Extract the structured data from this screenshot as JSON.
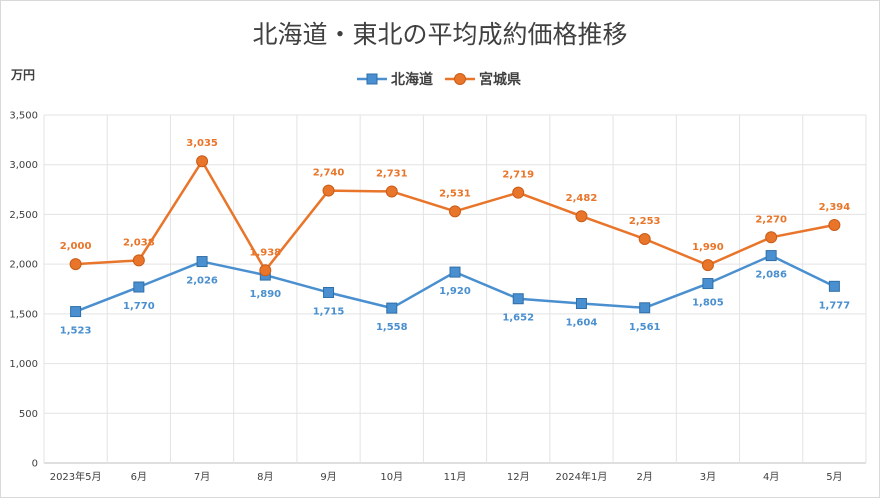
{
  "chart_data": {
    "type": "line",
    "title": "北海道・東北の平均成約価格推移",
    "unit_label": "万円",
    "ylim": [
      0,
      3500
    ],
    "ytick_step": 500,
    "ytick_labels": [
      "0",
      "500",
      "1,000",
      "1,500",
      "2,000",
      "2,500",
      "3,000",
      "3,500"
    ],
    "grid": true,
    "legend_position": "top",
    "categories": [
      "2023年5月",
      "6月",
      "7月",
      "8月",
      "9月",
      "10月",
      "11月",
      "12月",
      "2024年1月",
      "2月",
      "3月",
      "4月",
      "5月"
    ],
    "series": [
      {
        "name": "北海道",
        "color": "#4a8fcf",
        "marker": "square",
        "values": [
          1523,
          1770,
          2026,
          1890,
          1715,
          1558,
          1920,
          1652,
          1604,
          1561,
          1805,
          2086,
          1777
        ],
        "labels": [
          "1,523",
          "1,770",
          "2,026",
          "1,890",
          "1,715",
          "1,558",
          "1,920",
          "1,652",
          "1,604",
          "1,561",
          "1,805",
          "2,086",
          "1,777"
        ]
      },
      {
        "name": "宮城県",
        "color": "#e8752a",
        "marker": "circle",
        "values": [
          2000,
          2038,
          3035,
          1938,
          2740,
          2731,
          2531,
          2719,
          2482,
          2253,
          1990,
          2270,
          2394
        ],
        "labels": [
          "2,000",
          "2,038",
          "3,035",
          "1,938",
          "2,740",
          "2,731",
          "2,531",
          "2,719",
          "2,482",
          "2,253",
          "1,990",
          "2,270",
          "2,394"
        ]
      }
    ]
  }
}
